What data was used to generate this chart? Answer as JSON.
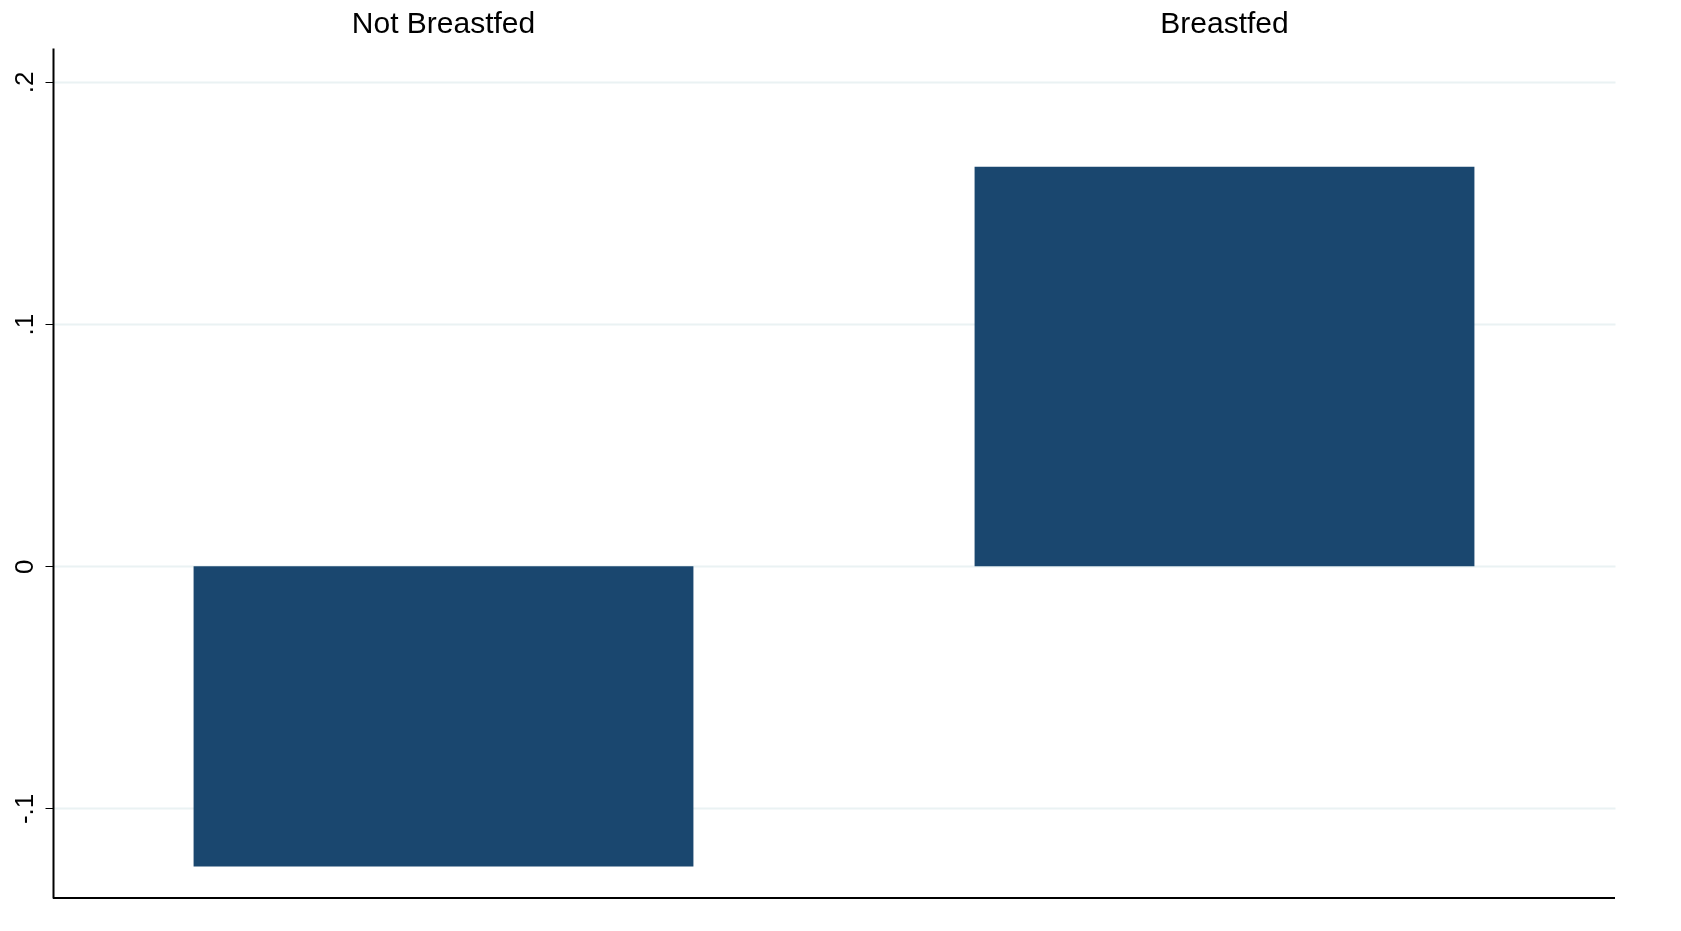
{
  "chart_data": {
    "type": "bar",
    "categories": [
      "Not Breastfed",
      "Breastfed"
    ],
    "values": [
      -0.124,
      0.165
    ],
    "color": "#1a476f",
    "ylim": [
      -0.137,
      0.214
    ],
    "yticks": [
      {
        "value": -0.1,
        "label": "-.1"
      },
      {
        "value": 0,
        "label": "0"
      },
      {
        "value": 0.1,
        "label": ".1"
      },
      {
        "value": 0.2,
        "label": ".2"
      }
    ],
    "grid": "y"
  }
}
